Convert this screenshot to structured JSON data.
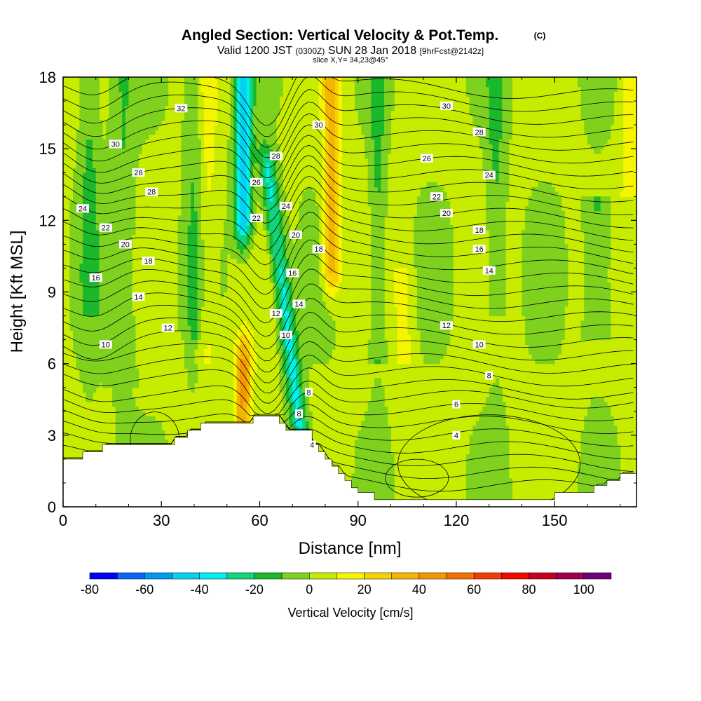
{
  "title": {
    "main": "Angled Section: Vertical Velocity & Pot.Temp.",
    "copyright": "(C)",
    "valid_line_a": "Valid 1200 JST",
    "valid_line_utc": "(0300Z)",
    "valid_line_b": "SUN 28 Jan 2018",
    "valid_line_fcst": "[9hrFcst@2142z]",
    "slice": "slice X,Y= 34,23@45°"
  },
  "chart_data": {
    "type": "heatmap",
    "subtype": "vertical cross-section, filled contours with line contours",
    "xlabel": "Distance [nm]",
    "ylabel": "Height [Kft MSL]",
    "xlim": [
      0,
      175
    ],
    "ylim": [
      0,
      18
    ],
    "xticks": [
      0,
      30,
      60,
      90,
      120,
      150
    ],
    "yticks": [
      0,
      3,
      6,
      9,
      12,
      15,
      18
    ],
    "fill_variable": "Vertical Velocity [cm/s]",
    "line_variable": "Potential Temperature",
    "colorbar": {
      "label": "Vertical Velocity [cm/s]",
      "tick_labels": [
        "-80",
        "-60",
        "-40",
        "-20",
        "0",
        "20",
        "40",
        "60",
        "80",
        "100"
      ],
      "range": [
        -80,
        100
      ],
      "bins": [
        {
          "from": -80,
          "to": -70,
          "color": "#0000f5"
        },
        {
          "from": -70,
          "to": -60,
          "color": "#0a64f5"
        },
        {
          "from": -60,
          "to": -50,
          "color": "#0099f0"
        },
        {
          "from": -50,
          "to": -40,
          "color": "#00d2f0"
        },
        {
          "from": -40,
          "to": -30,
          "color": "#00f0f0"
        },
        {
          "from": -30,
          "to": -20,
          "color": "#12d27a"
        },
        {
          "from": -20,
          "to": -10,
          "color": "#1cb82c"
        },
        {
          "from": -10,
          "to": 0,
          "color": "#7ed21e"
        },
        {
          "from": 0,
          "to": 10,
          "color": "#c8ec00"
        },
        {
          "from": 10,
          "to": 20,
          "color": "#f5f500"
        },
        {
          "from": 20,
          "to": 30,
          "color": "#f5d200"
        },
        {
          "from": 30,
          "to": 40,
          "color": "#f5b400"
        },
        {
          "from": 40,
          "to": 50,
          "color": "#f59600"
        },
        {
          "from": 50,
          "to": 60,
          "color": "#f56e00"
        },
        {
          "from": 60,
          "to": 70,
          "color": "#f53c00"
        },
        {
          "from": 70,
          "to": 80,
          "color": "#f00a00"
        },
        {
          "from": 80,
          "to": 90,
          "color": "#c8001e"
        },
        {
          "from": 90,
          "to": 100,
          "color": "#a00050"
        },
        {
          "from": 100,
          "to": 110,
          "color": "#6e0078"
        }
      ]
    },
    "terrain_profile": {
      "x": [
        0,
        3,
        6,
        9,
        12,
        15,
        17,
        19,
        21,
        23,
        25,
        28,
        30,
        32,
        34,
        36,
        38,
        40,
        42,
        44,
        46,
        48,
        50,
        52,
        54,
        56,
        58,
        60,
        62,
        64,
        66,
        68,
        70,
        72,
        74,
        76,
        78,
        80,
        82,
        84,
        86,
        88,
        90,
        95,
        100,
        110,
        120,
        125,
        130,
        135,
        140,
        143,
        146,
        150,
        154,
        158,
        162,
        166,
        170,
        175
      ],
      "height_kft": [
        2.0,
        2.0,
        2.3,
        2.3,
        2.6,
        2.6,
        2.6,
        2.6,
        2.6,
        2.6,
        2.6,
        2.6,
        2.6,
        2.6,
        2.9,
        2.9,
        3.2,
        3.2,
        3.5,
        3.5,
        3.5,
        3.5,
        3.5,
        3.5,
        3.5,
        3.5,
        3.8,
        3.8,
        3.8,
        3.8,
        3.5,
        3.2,
        3.2,
        3.2,
        3.2,
        2.6,
        2.3,
        2.0,
        1.7,
        1.4,
        1.1,
        0.8,
        0.6,
        0.3,
        0.3,
        0.3,
        0.3,
        0.3,
        0.3,
        0.3,
        0.3,
        0.3,
        0.3,
        0.6,
        0.6,
        0.6,
        0.9,
        1.1,
        1.4,
        1.7
      ]
    },
    "theta_contour_labels": [
      {
        "value": "32",
        "x": 36,
        "y": 16.7
      },
      {
        "value": "30",
        "x": 16,
        "y": 15.2
      },
      {
        "value": "28",
        "x": 23,
        "y": 14.0
      },
      {
        "value": "28",
        "x": 27,
        "y": 13.2
      },
      {
        "value": "24",
        "x": 6,
        "y": 12.5
      },
      {
        "value": "22",
        "x": 13,
        "y": 11.7
      },
      {
        "value": "20",
        "x": 19,
        "y": 11.0
      },
      {
        "value": "18",
        "x": 26,
        "y": 10.3
      },
      {
        "value": "16",
        "x": 10,
        "y": 9.6
      },
      {
        "value": "14",
        "x": 23,
        "y": 8.8
      },
      {
        "value": "12",
        "x": 32,
        "y": 7.5
      },
      {
        "value": "10",
        "x": 13,
        "y": 6.8
      },
      {
        "value": "28",
        "x": 65,
        "y": 14.7
      },
      {
        "value": "26",
        "x": 59,
        "y": 13.6
      },
      {
        "value": "24",
        "x": 68,
        "y": 12.6
      },
      {
        "value": "22",
        "x": 59,
        "y": 12.1
      },
      {
        "value": "20",
        "x": 71,
        "y": 11.4
      },
      {
        "value": "18",
        "x": 78,
        "y": 10.8
      },
      {
        "value": "16",
        "x": 70,
        "y": 9.8
      },
      {
        "value": "14",
        "x": 72,
        "y": 8.5
      },
      {
        "value": "12",
        "x": 65,
        "y": 8.1
      },
      {
        "value": "10",
        "x": 68,
        "y": 7.2
      },
      {
        "value": "8",
        "x": 75,
        "y": 4.8
      },
      {
        "value": "8",
        "x": 72,
        "y": 3.9
      },
      {
        "value": "4",
        "x": 76,
        "y": 2.6
      },
      {
        "value": "30",
        "x": 78,
        "y": 16.0
      },
      {
        "value": "30",
        "x": 117,
        "y": 16.8
      },
      {
        "value": "28",
        "x": 127,
        "y": 15.7
      },
      {
        "value": "26",
        "x": 111,
        "y": 14.6
      },
      {
        "value": "24",
        "x": 130,
        "y": 13.9
      },
      {
        "value": "22",
        "x": 114,
        "y": 13.0
      },
      {
        "value": "20",
        "x": 117,
        "y": 12.3
      },
      {
        "value": "18",
        "x": 127,
        "y": 11.6
      },
      {
        "value": "16",
        "x": 127,
        "y": 10.8
      },
      {
        "value": "14",
        "x": 130,
        "y": 9.9
      },
      {
        "value": "12",
        "x": 117,
        "y": 7.6
      },
      {
        "value": "10",
        "x": 127,
        "y": 6.8
      },
      {
        "value": "8",
        "x": 130,
        "y": 5.5
      },
      {
        "value": "6",
        "x": 120,
        "y": 4.3
      },
      {
        "value": "4",
        "x": 120,
        "y": 3.0
      }
    ],
    "velocity_features": [
      {
        "description": "strong downdraft core",
        "x_center": 55,
        "y_range": [
          12,
          18
        ],
        "peak_cm_s": -50
      },
      {
        "description": "downdraft band along lee slope",
        "x_center": 68,
        "y_range": [
          3,
          14
        ],
        "peak_cm_s": -35
      },
      {
        "description": "updraft band",
        "x_center": 82,
        "y_range": [
          10,
          18
        ],
        "peak_cm_s": 35
      },
      {
        "description": "updraft over ridge",
        "x_center": 55,
        "y_range": [
          3,
          6
        ],
        "peak_cm_s": 40
      }
    ]
  }
}
